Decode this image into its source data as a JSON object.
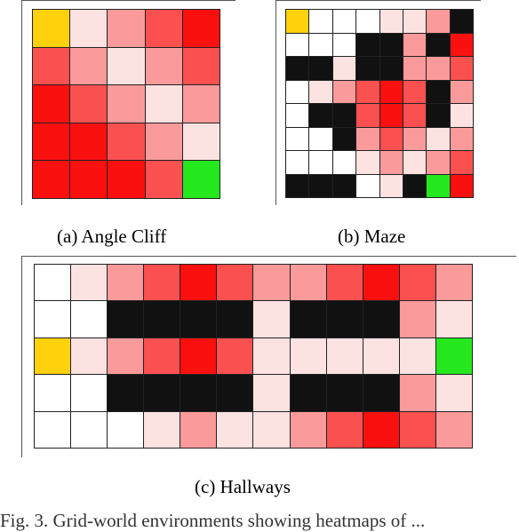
{
  "colors": {
    "W": "#ffffff",
    "L": "#fde2e2",
    "P": "#fb9a9a",
    "M": "#fa5050",
    "R": "#fb1010",
    "K": "#111111",
    "Y": "#fdd10b",
    "G": "#24e81d"
  },
  "panels": [
    {
      "id": "angle-cliff",
      "caption": "(a) Angle Cliff",
      "rows": [
        "YLPMR",
        "MPLPM",
        "RMPLP",
        "RRMPL",
        "RRRMG"
      ]
    },
    {
      "id": "maze",
      "caption": "(b) Maze",
      "rows": [
        "YWWWLLPK",
        "WWWKKPKR",
        "KKLKKPPM",
        "WLPMRMKP",
        "WKKMRMKL",
        "WWKPMPLP",
        "WWWLPLPM",
        "KKKWLKGR"
      ]
    },
    {
      "id": "hallways",
      "caption": "(c) Hallways",
      "rows": [
        "WLPMRMPPMRMP",
        "WWKKKKLKKKPL",
        "YLPMRMLLLLLG",
        "WWKKKKLKKKPL",
        "WWWLPLLPMRMP"
      ]
    }
  ],
  "bottom_text": "Fig. 3.  Grid-world environments showing heatmaps of ..."
}
